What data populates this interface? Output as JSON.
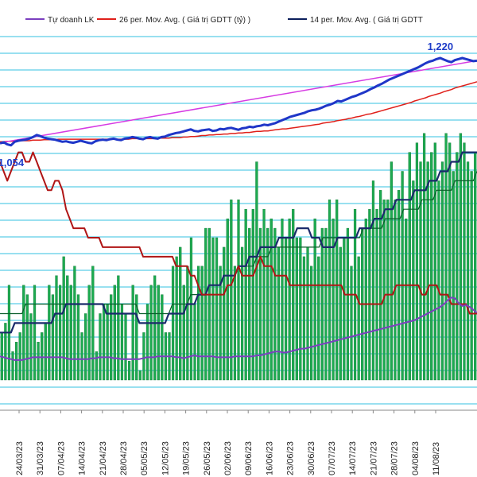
{
  "chart_data": {
    "type": "bar",
    "title": "",
    "xlabel": "",
    "ylabel": "",
    "grid": true,
    "legend_position": "top",
    "colors": {
      "bars": "#1daa50",
      "bar_edge": "#0e7a35",
      "grid": "#33c2e0",
      "index_line": "#1f36c8",
      "trend_line": "#d63be3",
      "ma26": "#e0201a",
      "ma14": "#0c1f5c",
      "tu_doanh": "#7b3fbf",
      "red_level": "#b01515",
      "navy_level": "#1a2a6b"
    },
    "legend": [
      {
        "name": "Tự doanh LK",
        "color": "#7b3fbf"
      },
      {
        "name": "26 per. Mov. Avg. ( Giá trị GDTT (tỷ) )",
        "color": "#e0201a"
      },
      {
        "name": "14 per. Mov. Avg. ( Giá trị GDTT",
        "color": "#0c1f5c"
      }
    ],
    "x_tick_labels": [
      "24/03/23",
      "31/03/23",
      "07/04/23",
      "14/04/23",
      "21/04/23",
      "28/04/23",
      "05/05/23",
      "12/05/23",
      "19/05/23",
      "26/05/23",
      "02/06/23",
      "09/06/23",
      "16/06/23",
      "23/06/23",
      "30/06/23",
      "07/07/23",
      "14/07/23",
      "21/07/23",
      "28/07/23",
      "04/08/23",
      "11/08/23"
    ],
    "annotations": [
      {
        "text": "1,054",
        "series": "index"
      },
      {
        "text": "1,220",
        "series": "index"
      }
    ],
    "index_ylim": [
      1040,
      1240
    ],
    "value_ylim": [
      0,
      30
    ],
    "bars_values": [
      5,
      6,
      10,
      3,
      4,
      5,
      10,
      9,
      7,
      10,
      4,
      5,
      6,
      10,
      9,
      11,
      10,
      13,
      11,
      10,
      12,
      9,
      5,
      7,
      10,
      12,
      3,
      7,
      8,
      8,
      9,
      10,
      11,
      8,
      7,
      2,
      10,
      9,
      1,
      5,
      8,
      10,
      11,
      10,
      9,
      5,
      5,
      12,
      13,
      14,
      10,
      12,
      15,
      8,
      12,
      12,
      16,
      16,
      15,
      15,
      12,
      14,
      17,
      19,
      12,
      19,
      14,
      18,
      16,
      18,
      23,
      16,
      18,
      16,
      17,
      16,
      14,
      17,
      15,
      17,
      18,
      15,
      15,
      13,
      14,
      12,
      17,
      13,
      16,
      16,
      19,
      17,
      19,
      14,
      15,
      16,
      12,
      18,
      13,
      16,
      17,
      18,
      21,
      18,
      20,
      19,
      19,
      23,
      19,
      20,
      22,
      17,
      24,
      21,
      25,
      23,
      26,
      23,
      24,
      25,
      21,
      23,
      26,
      25,
      22,
      24,
      26,
      25,
      23,
      22,
      24
    ],
    "series": [
      {
        "name": "index",
        "values": [
          1055,
          1057,
          1053,
          1051,
          1058,
          1060,
          1061,
          1062,
          1064,
          1067,
          1071,
          1069,
          1066,
          1064,
          1063,
          1062,
          1060,
          1058,
          1059,
          1057,
          1056,
          1058,
          1060,
          1058,
          1056,
          1055,
          1059,
          1061,
          1062,
          1061,
          1063,
          1064,
          1062,
          1061,
          1064,
          1065,
          1067,
          1066,
          1064,
          1063,
          1066,
          1067,
          1065,
          1064,
          1067,
          1068,
          1071,
          1073,
          1075,
          1076,
          1078,
          1080,
          1082,
          1079,
          1078,
          1080,
          1081,
          1082,
          1079,
          1080,
          1083,
          1082,
          1084,
          1085,
          1083,
          1081,
          1084,
          1085,
          1087,
          1086,
          1088,
          1089,
          1091,
          1090,
          1092,
          1094,
          1097,
          1100,
          1103,
          1106,
          1108,
          1110,
          1112,
          1114,
          1117,
          1119,
          1120,
          1122,
          1125,
          1128,
          1130,
          1133,
          1137,
          1136,
          1139,
          1142,
          1145,
          1147,
          1150,
          1153,
          1156,
          1160,
          1163,
          1167,
          1170,
          1174,
          1178,
          1181,
          1184,
          1187,
          1190,
          1193,
          1196,
          1199,
          1202,
          1206,
          1210,
          1213,
          1215,
          1218,
          1220,
          1217,
          1214,
          1212,
          1216,
          1218,
          1220,
          1218,
          1216,
          1214,
          1215
        ]
      },
      {
        "name": "trend",
        "values": [
          1056,
          1215
        ]
      },
      {
        "name": "ma26",
        "values": [
          1058,
          1058,
          1059,
          1059,
          1059,
          1060,
          1060,
          1060,
          1060,
          1061,
          1061,
          1061,
          1062,
          1062,
          1062,
          1062,
          1063,
          1063,
          1063,
          1063,
          1063,
          1063,
          1063,
          1063,
          1063,
          1063,
          1063,
          1063,
          1063,
          1063,
          1063,
          1063,
          1063,
          1063,
          1063,
          1063,
          1064,
          1064,
          1064,
          1064,
          1064,
          1064,
          1064,
          1065,
          1065,
          1065,
          1065,
          1066,
          1066,
          1066,
          1067,
          1067,
          1068,
          1068,
          1069,
          1070,
          1070,
          1071,
          1071,
          1072,
          1072,
          1073,
          1073,
          1074,
          1074,
          1075,
          1075,
          1076,
          1076,
          1077,
          1078,
          1078,
          1079,
          1079,
          1080,
          1081,
          1082,
          1083,
          1083,
          1084,
          1085,
          1086,
          1087,
          1088,
          1089,
          1090,
          1091,
          1092,
          1094,
          1095,
          1096,
          1097,
          1099,
          1100,
          1101,
          1103,
          1104,
          1106,
          1107,
          1109,
          1111,
          1112,
          1114,
          1116,
          1118,
          1120,
          1122,
          1124,
          1126,
          1128,
          1130,
          1132,
          1134,
          1137,
          1139,
          1141,
          1143,
          1146,
          1148,
          1150,
          1152,
          1155,
          1157,
          1159,
          1162,
          1164,
          1166,
          1168,
          1170,
          1172,
          1174
        ]
      },
      {
        "name": "red_level",
        "values": [
          23,
          22,
          21,
          22,
          23,
          24,
          24,
          23,
          23,
          24,
          23,
          22,
          21,
          20,
          20,
          21,
          21,
          20,
          18,
          17,
          16,
          16,
          16,
          16,
          15,
          15,
          15,
          15,
          14,
          14,
          14,
          14,
          14,
          14,
          14,
          14,
          14,
          14,
          14,
          13,
          13,
          13,
          13,
          13,
          13,
          13,
          13,
          13,
          12,
          12,
          12,
          12,
          11,
          11,
          10,
          9,
          9,
          9,
          9,
          9,
          9,
          9,
          10,
          10,
          11,
          12,
          11,
          11,
          11,
          11,
          12,
          13,
          12,
          12,
          12,
          11,
          11,
          11,
          11,
          10,
          10,
          10,
          10,
          10,
          10,
          10,
          10,
          10,
          10,
          10,
          10,
          10,
          10,
          10,
          9,
          9,
          9,
          9,
          8,
          8,
          8,
          8,
          8,
          8,
          8,
          9,
          9,
          9,
          10,
          10,
          10,
          10,
          10,
          10,
          10,
          9,
          9,
          10,
          10,
          10,
          9,
          9,
          9,
          8,
          8,
          8,
          8,
          8,
          7,
          7,
          7
        ]
      },
      {
        "name": "navy_level",
        "values": [
          5,
          5,
          5,
          5,
          6,
          6,
          6,
          6,
          6,
          6,
          6,
          6,
          6,
          6,
          6,
          7,
          7,
          7,
          8,
          8,
          8,
          8,
          8,
          8,
          8,
          8,
          8,
          8,
          8,
          7,
          7,
          7,
          7,
          7,
          7,
          7,
          7,
          7,
          6,
          6,
          6,
          6,
          6,
          6,
          6,
          6,
          7,
          7,
          7,
          7,
          7,
          8,
          8,
          8,
          9,
          9,
          9,
          10,
          10,
          10,
          10,
          11,
          11,
          11,
          11,
          12,
          12,
          12,
          13,
          13,
          13,
          14,
          14,
          14,
          14,
          14,
          15,
          15,
          15,
          15,
          15,
          16,
          16,
          16,
          16,
          15,
          15,
          15,
          14,
          14,
          14,
          14,
          15,
          15,
          15,
          15,
          15,
          15,
          16,
          16,
          16,
          16,
          17,
          17,
          17,
          18,
          18,
          18,
          19,
          19,
          19,
          19,
          19,
          20,
          20,
          20,
          20,
          21,
          21,
          21,
          22,
          22,
          22,
          23,
          23,
          23,
          24,
          24,
          24,
          24,
          24
        ]
      },
      {
        "name": "ma_green",
        "values": [
          7,
          7,
          7,
          7,
          7,
          7,
          7,
          8,
          8,
          8,
          8,
          8,
          8,
          8,
          8,
          8,
          8,
          8,
          8,
          8,
          8,
          8,
          8,
          8,
          8,
          8,
          8,
          8,
          8,
          8,
          8,
          8,
          8,
          8,
          8,
          8,
          8,
          8,
          7,
          7,
          7,
          7,
          7,
          7,
          7,
          7,
          7,
          8,
          8,
          8,
          8,
          8,
          9,
          9,
          9,
          9,
          9,
          10,
          10,
          10,
          10,
          11,
          11,
          11,
          11,
          12,
          12,
          12,
          12,
          12,
          13,
          13,
          13,
          13,
          14,
          14,
          14,
          14,
          14,
          14,
          14,
          14,
          14,
          14,
          14,
          14,
          14,
          14,
          15,
          15,
          15,
          15,
          15,
          15,
          15,
          15,
          15,
          15,
          15,
          16,
          16,
          16,
          16,
          16,
          16,
          17,
          17,
          17,
          17,
          17,
          18,
          18,
          18,
          18,
          18,
          19,
          19,
          19,
          19,
          20,
          20,
          20,
          20,
          20,
          21,
          21,
          21,
          21,
          21,
          21,
          22
        ]
      },
      {
        "name": "Tự doanh LK",
        "values": [
          2.5,
          2.4,
          2.3,
          2.2,
          2.1,
          2.1,
          2.1,
          2.2,
          2.3,
          2.4,
          2.4,
          2.4,
          2.4,
          2.4,
          2.4,
          2.4,
          2.4,
          2.4,
          2.3,
          2.2,
          2.2,
          2.2,
          2.2,
          2.2,
          2.2,
          2.3,
          2.3,
          2.4,
          2.4,
          2.4,
          2.4,
          2.3,
          2.3,
          2.2,
          2.2,
          2.2,
          2.2,
          2.2,
          2.2,
          2.3,
          2.4,
          2.4,
          2.4,
          2.5,
          2.5,
          2.5,
          2.5,
          2.5,
          2.4,
          2.4,
          2.3,
          2.4,
          2.5,
          2.6,
          2.5,
          2.5,
          2.5,
          2.5,
          2.5,
          2.4,
          2.4,
          2.4,
          2.4,
          2.4,
          2.5,
          2.5,
          2.5,
          2.5,
          2.5,
          2.5,
          2.6,
          2.6,
          2.7,
          2.8,
          2.9,
          3.0,
          3.0,
          2.9,
          2.9,
          3.0,
          3.1,
          3.2,
          3.3,
          3.3,
          3.4,
          3.5,
          3.6,
          3.7,
          3.8,
          3.9,
          4.0,
          4.1,
          4.2,
          4.3,
          4.4,
          4.5,
          4.6,
          4.7,
          4.8,
          4.9,
          5.0,
          5.1,
          5.2,
          5.3,
          5.4,
          5.5,
          5.6,
          5.7,
          5.8,
          5.9,
          6.0,
          6.1,
          6.2,
          6.3,
          6.5,
          6.7,
          6.9,
          7.1,
          7.3,
          7.5,
          7.7,
          8.0,
          8.4,
          8.7,
          8.6,
          8.1,
          7.8,
          7.9,
          7.7,
          7.4,
          7.1
        ]
      }
    ]
  }
}
